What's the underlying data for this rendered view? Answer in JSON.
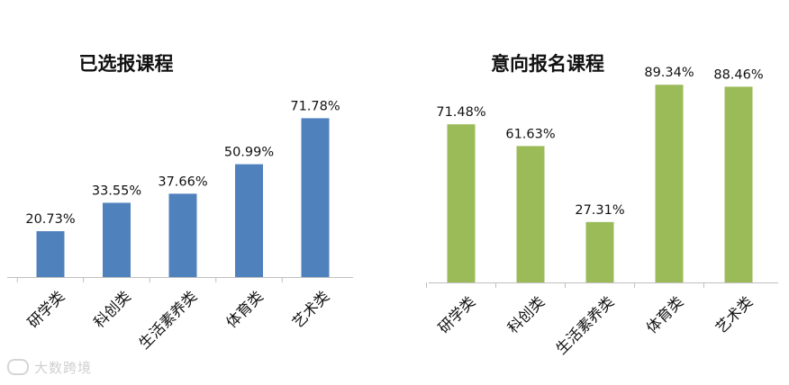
{
  "chart_data": [
    {
      "type": "bar",
      "title": "已选报课程",
      "categories": [
        "研学类",
        "科创类",
        "生活素养类",
        "体育类",
        "艺术类"
      ],
      "values": [
        20.73,
        33.55,
        37.66,
        50.99,
        71.78
      ],
      "value_labels": [
        "20.73%",
        "33.55%",
        "37.66%",
        "50.99%",
        "71.78%"
      ],
      "unit": "%",
      "ylim": [
        0,
        100
      ],
      "color": "#4f81bd",
      "grid": false,
      "legend": false
    },
    {
      "type": "bar",
      "title": "意向报名课程",
      "categories": [
        "研学类",
        "科创类",
        "生活素养类",
        "体育类",
        "艺术类"
      ],
      "values": [
        71.48,
        61.63,
        27.31,
        89.34,
        88.46
      ],
      "value_labels": [
        "71.48%",
        "61.63%",
        "27.31%",
        "89.34%",
        "88.46%"
      ],
      "unit": "%",
      "ylim": [
        0,
        100
      ],
      "color": "#9bbb59",
      "grid": false,
      "legend": false
    }
  ],
  "watermark": {
    "text": "大数跨境",
    "icon": "logo-icon"
  }
}
